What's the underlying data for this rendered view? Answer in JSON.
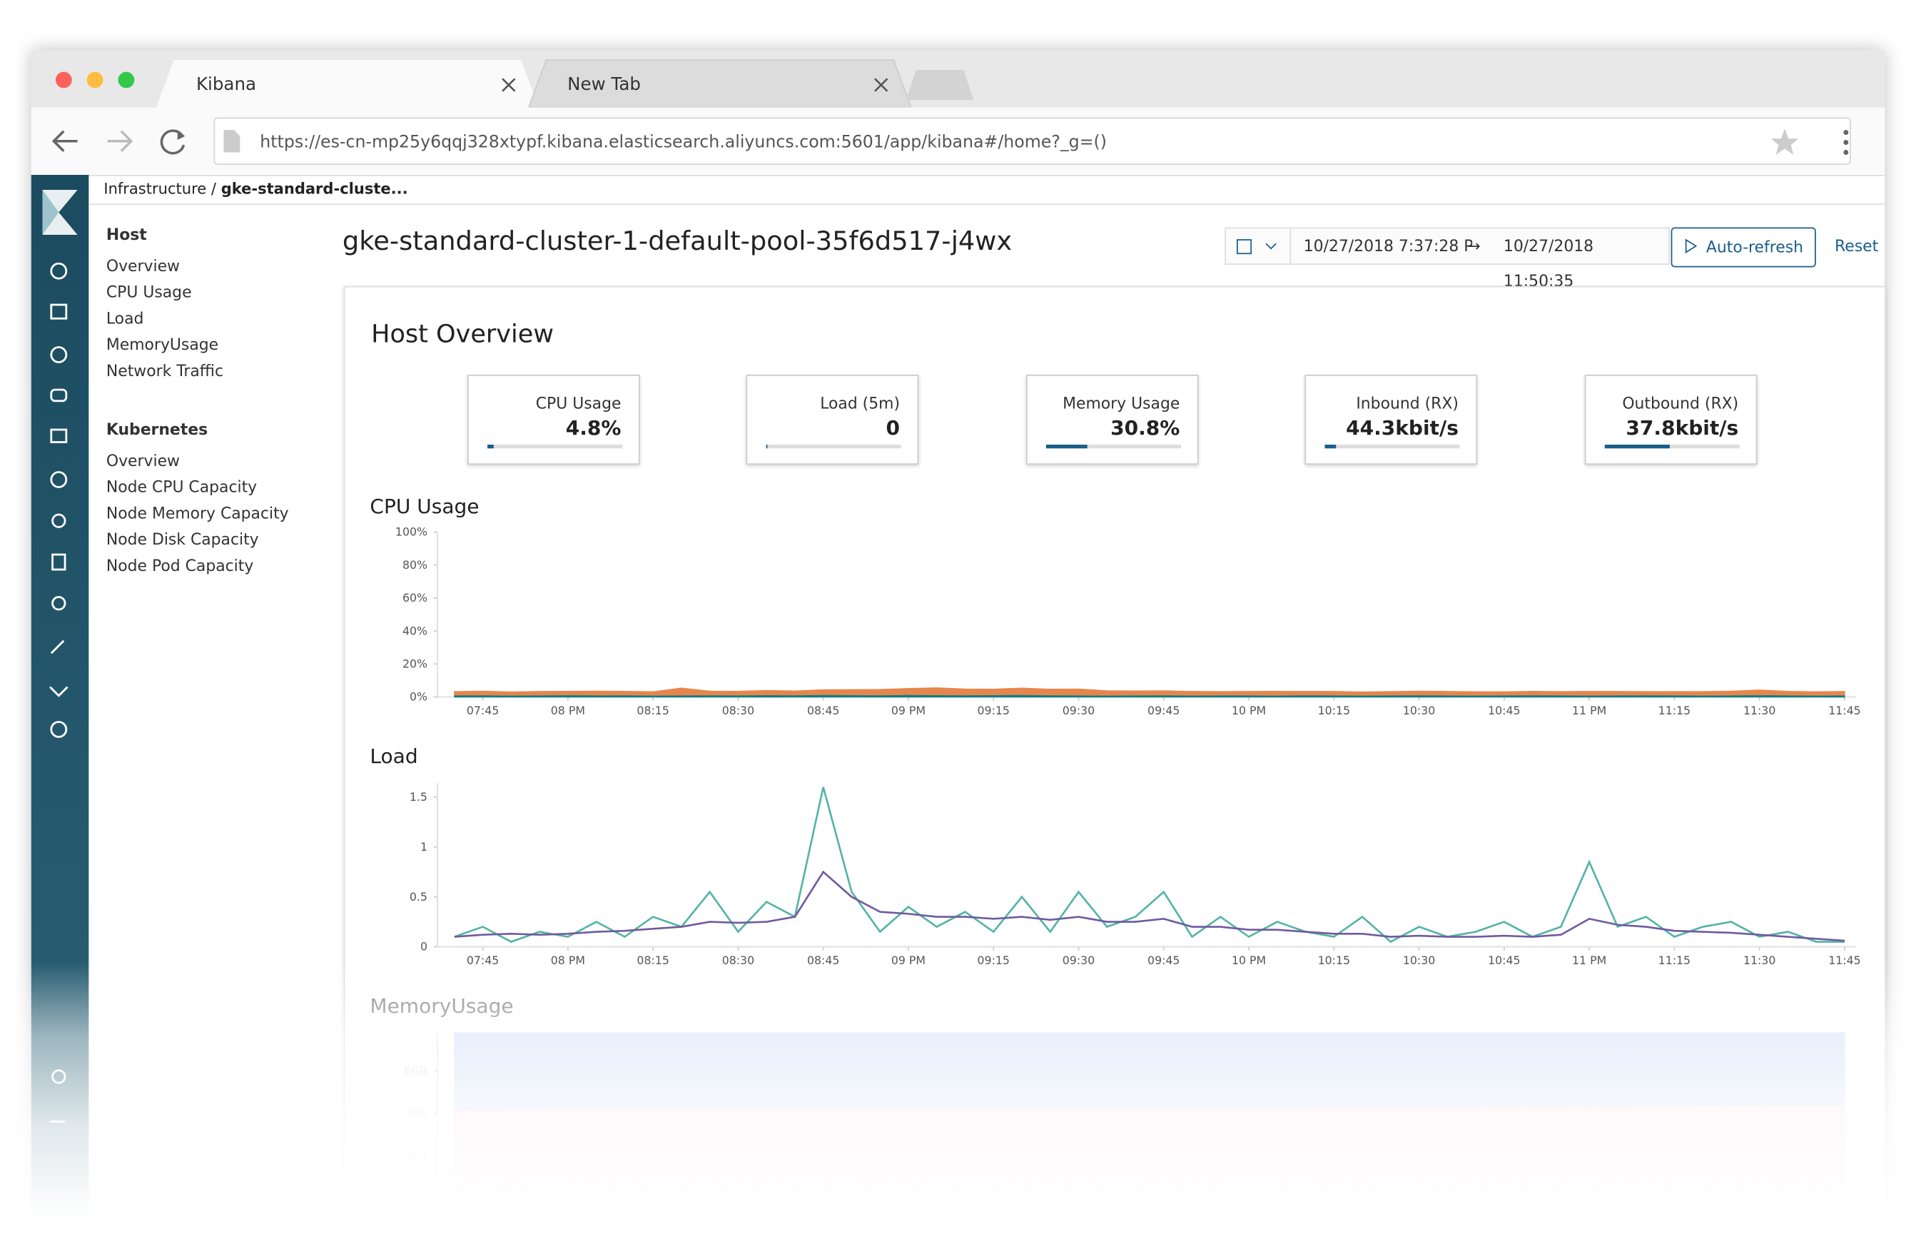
{
  "browser": {
    "tabs": [
      "Kibana",
      "New Tab"
    ],
    "url": "https://es-cn-mp25y6qqj328xtypf.kibana.elasticsearch.aliyuncs.com:5601/app/kibana#/home?_g=()"
  },
  "breadcrumb": {
    "root": "Infrastructure",
    "separator": "/",
    "current": "gke-standard-cluste..."
  },
  "sidebar": {
    "sections": [
      {
        "title": "Host",
        "items": [
          "Overview",
          "CPU Usage",
          "Load",
          "MemoryUsage",
          "Network Traffic"
        ]
      },
      {
        "title": "Kubernetes",
        "items": [
          "Overview",
          "Node CPU Capacity",
          "Node Memory Capacity",
          "Node Disk Capacity",
          "Node Pod Capacity"
        ]
      }
    ]
  },
  "header": {
    "title": "gke-standard-cluster-1-default-pool-35f6d517-j4wx",
    "date_start": "10/27/2018 7:37:28 PM",
    "arrow": "→",
    "date_end": "10/27/2018 11:50:35",
    "auto_refresh": "Auto-refresh",
    "reset": "Reset"
  },
  "overview": {
    "title": "Host Overview",
    "metrics": [
      {
        "label": "CPU Usage",
        "value": 4.8,
        "value_label": "4.8%",
        "bar": 4.8
      },
      {
        "label": "Load (5m)",
        "value": 0,
        "value_label": "0",
        "bar": 1
      },
      {
        "label": "Memory Usage",
        "value": 30.8,
        "value_label": "30.8%",
        "bar": 30.8
      },
      {
        "label": "Inbound (RX)",
        "value": 44.3,
        "value_label": "44.3kbit/s",
        "bar": 8
      },
      {
        "label": "Outbound (RX)",
        "value": 37.8,
        "value_label": "37.8kbit/s",
        "bar": 48
      }
    ]
  },
  "chart_data": [
    {
      "type": "area",
      "title": "CPU Usage",
      "stacked": true,
      "x": [
        1180,
        1185,
        1190,
        1195,
        1200,
        1205,
        1210,
        1215,
        1220,
        1225,
        1230,
        1235,
        1240,
        1245,
        1250,
        1255,
        1260,
        1265,
        1270,
        1275,
        1280,
        1285,
        1290,
        1295,
        1300,
        1305,
        1310,
        1315,
        1320,
        1325,
        1330,
        1335,
        1340,
        1345,
        1350,
        1355,
        1360,
        1365,
        1370,
        1375,
        1380,
        1385,
        1390,
        1395,
        1400,
        1405,
        1410,
        1415,
        1420,
        1425
      ],
      "xlim": [
        1177,
        1427
      ],
      "xticks": [
        {
          "value": 1185,
          "label": "07:45"
        },
        {
          "value": 1200,
          "label": "08 PM"
        },
        {
          "value": 1215,
          "label": "08:15"
        },
        {
          "value": 1230,
          "label": "08:30"
        },
        {
          "value": 1245,
          "label": "08:45"
        },
        {
          "value": 1260,
          "label": "09 PM"
        },
        {
          "value": 1275,
          "label": "09:15"
        },
        {
          "value": 1290,
          "label": "09:30"
        },
        {
          "value": 1305,
          "label": "09:45"
        },
        {
          "value": 1320,
          "label": "10 PM"
        },
        {
          "value": 1335,
          "label": "10:15"
        },
        {
          "value": 1350,
          "label": "10:30"
        },
        {
          "value": 1365,
          "label": "10:45"
        },
        {
          "value": 1380,
          "label": "11 PM"
        },
        {
          "value": 1395,
          "label": "11:15"
        },
        {
          "value": 1410,
          "label": "11:30"
        },
        {
          "value": 1425,
          "label": "11:45"
        }
      ],
      "ylim": [
        0,
        100
      ],
      "yticks": [
        {
          "value": 0,
          "label": "0%"
        },
        {
          "value": 20,
          "label": "20%"
        },
        {
          "value": 40,
          "label": "40%"
        },
        {
          "value": 60,
          "label": "60%"
        },
        {
          "value": 80,
          "label": "80%"
        },
        {
          "value": 100,
          "label": "100%"
        }
      ],
      "series": [
        {
          "color": "#0e7f86",
          "values": [
            1.2,
            1.3,
            1.1,
            1.2,
            1.4,
            1.2,
            1.3,
            1.1,
            1.2,
            1.3,
            1.2,
            1.4,
            1.3,
            1.5,
            1.4,
            1.3,
            1.5,
            1.4,
            1.3,
            1.4,
            1.5,
            1.3,
            1.2,
            1.1,
            1.2,
            1.3,
            1.1,
            1.2,
            1.2,
            1.1,
            1.3,
            1.2,
            1.1,
            1.2,
            1.3,
            1.2,
            1.1,
            1.2,
            1.3,
            1.2,
            1.1,
            1.2,
            1.3,
            1.2,
            1.1,
            1.2,
            1.4,
            1.2,
            1.1,
            1.2
          ]
        },
        {
          "color": "#e7864c",
          "values": [
            2.0,
            2.2,
            1.9,
            2.1,
            2.0,
            2.3,
            2.1,
            2.0,
            4.2,
            2.2,
            2.2,
            2.5,
            2.3,
            2.8,
            3.0,
            3.2,
            3.6,
            4.1,
            3.5,
            3.3,
            3.8,
            3.4,
            3.6,
            2.6,
            2.4,
            2.4,
            2.2,
            2.0,
            2.1,
            2.3,
            2.0,
            2.1,
            1.9,
            2.0,
            2.2,
            2.1,
            2.0,
            1.9,
            2.1,
            2.0,
            2.2,
            2.1,
            1.9,
            2.0,
            2.1,
            2.3,
            2.8,
            2.2,
            2.0,
            2.1
          ]
        }
      ]
    },
    {
      "type": "line",
      "title": "Load",
      "x": [
        1180,
        1185,
        1190,
        1195,
        1200,
        1205,
        1210,
        1215,
        1220,
        1225,
        1230,
        1235,
        1240,
        1245,
        1250,
        1255,
        1260,
        1265,
        1270,
        1275,
        1280,
        1285,
        1290,
        1295,
        1300,
        1305,
        1310,
        1315,
        1320,
        1325,
        1330,
        1335,
        1340,
        1345,
        1350,
        1355,
        1360,
        1365,
        1370,
        1375,
        1380,
        1385,
        1390,
        1395,
        1400,
        1405,
        1410,
        1415,
        1420,
        1425
      ],
      "xlim": [
        1177,
        1427
      ],
      "xticks": [
        {
          "value": 1185,
          "label": "07:45"
        },
        {
          "value": 1200,
          "label": "08 PM"
        },
        {
          "value": 1215,
          "label": "08:15"
        },
        {
          "value": 1230,
          "label": "08:30"
        },
        {
          "value": 1245,
          "label": "08:45"
        },
        {
          "value": 1260,
          "label": "09 PM"
        },
        {
          "value": 1275,
          "label": "09:15"
        },
        {
          "value": 1290,
          "label": "09:30"
        },
        {
          "value": 1305,
          "label": "09:45"
        },
        {
          "value": 1320,
          "label": "10 PM"
        },
        {
          "value": 1335,
          "label": "10:15"
        },
        {
          "value": 1350,
          "label": "10:30"
        },
        {
          "value": 1365,
          "label": "10:45"
        },
        {
          "value": 1380,
          "label": "11 PM"
        },
        {
          "value": 1395,
          "label": "11:15"
        },
        {
          "value": 1410,
          "label": "11:30"
        },
        {
          "value": 1425,
          "label": "11:45"
        }
      ],
      "ylim": [
        0,
        1.64
      ],
      "yticks": [
        0,
        0.5,
        1,
        1.5
      ],
      "series": [
        {
          "color": "#54b3a6",
          "values": [
            0.1,
            0.2,
            0.05,
            0.15,
            0.1,
            0.25,
            0.1,
            0.3,
            0.2,
            0.55,
            0.15,
            0.45,
            0.3,
            1.6,
            0.55,
            0.15,
            0.4,
            0.2,
            0.35,
            0.15,
            0.5,
            0.15,
            0.55,
            0.2,
            0.3,
            0.55,
            0.1,
            0.3,
            0.1,
            0.25,
            0.15,
            0.1,
            0.3,
            0.05,
            0.2,
            0.1,
            0.15,
            0.25,
            0.1,
            0.2,
            0.85,
            0.2,
            0.3,
            0.1,
            0.2,
            0.25,
            0.1,
            0.15,
            0.05,
            0.05
          ]
        },
        {
          "color": "#6f5b9e",
          "values": [
            0.1,
            0.12,
            0.13,
            0.12,
            0.13,
            0.15,
            0.16,
            0.18,
            0.2,
            0.25,
            0.24,
            0.25,
            0.3,
            0.75,
            0.5,
            0.35,
            0.33,
            0.3,
            0.3,
            0.28,
            0.3,
            0.27,
            0.3,
            0.25,
            0.25,
            0.28,
            0.2,
            0.2,
            0.17,
            0.17,
            0.15,
            0.13,
            0.13,
            0.1,
            0.11,
            0.1,
            0.1,
            0.11,
            0.1,
            0.12,
            0.28,
            0.22,
            0.2,
            0.16,
            0.15,
            0.14,
            0.12,
            0.1,
            0.08,
            0.06
          ]
        }
      ]
    },
    {
      "type": "area",
      "title": "MemoryUsage",
      "stacked": true,
      "x": [
        1180,
        1230,
        1280,
        1330,
        1380,
        1425
      ],
      "xlim": [
        1177,
        1427
      ],
      "ylim": [
        0,
        7.8
      ],
      "yticks": [
        {
          "value": 2,
          "label": "2GB"
        },
        {
          "value": 4,
          "label": "4GB"
        },
        {
          "value": 6,
          "label": "6GB"
        }
      ],
      "series": [
        {
          "color": "#f3c3cd",
          "values": [
            4.2,
            4.25,
            4.25,
            4.3,
            4.35,
            4.4
          ]
        },
        {
          "color": "#a9c4f2",
          "values": [
            3.6,
            3.55,
            3.55,
            3.5,
            3.45,
            3.4
          ]
        }
      ]
    }
  ]
}
